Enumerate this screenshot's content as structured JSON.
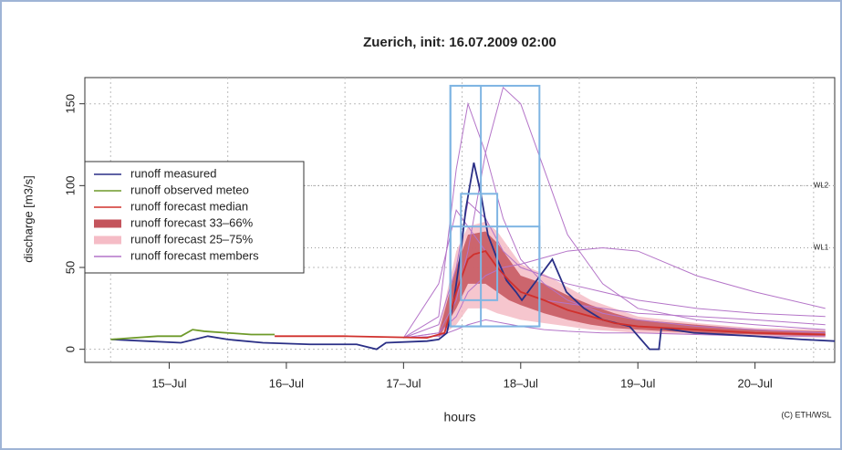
{
  "chart_data": {
    "type": "hydrograph",
    "title": "Zuerich, init: 16.07.2009 02:00",
    "xlabel": "hours",
    "ylabel": "discharge [m3/s]",
    "credit": "(C) ETH/WSL",
    "xlim": [
      14.28,
      20.68
    ],
    "ylim": [
      -8,
      166
    ],
    "xticks": [
      {
        "value": 15,
        "label": "15–Jul"
      },
      {
        "value": 16,
        "label": "16–Jul"
      },
      {
        "value": 17,
        "label": "17–Jul"
      },
      {
        "value": 18,
        "label": "18–Jul"
      },
      {
        "value": 19,
        "label": "19–Jul"
      },
      {
        "value": 20,
        "label": "20–Jul"
      }
    ],
    "yticks": [
      0,
      50,
      100,
      150
    ],
    "xgrid": [
      14.5,
      15.5,
      16.5,
      17.5,
      18.5,
      19.5,
      20.5
    ],
    "grid": true,
    "legend": "upper-left",
    "series": [
      {
        "name": "runoff measured",
        "color": "#2a2f86",
        "x": [
          14.51,
          14.8,
          15.1,
          15.33,
          15.5,
          15.8,
          16.2,
          16.6,
          16.77,
          16.85,
          17.2,
          17.3,
          17.37,
          17.43,
          17.49,
          17.53,
          17.6,
          17.66,
          17.72,
          17.8,
          17.88,
          17.96,
          18.01,
          18.27,
          18.39,
          18.54,
          18.7,
          18.93,
          19.1,
          19.18,
          19.2,
          19.48,
          20.0,
          20.4,
          20.68
        ],
        "values": [
          6,
          5,
          4,
          8,
          6,
          4,
          3,
          3,
          0,
          4,
          5,
          6,
          10,
          30,
          60,
          85,
          114,
          95,
          70,
          55,
          42,
          35,
          30,
          55,
          35,
          25,
          18,
          14,
          0,
          0,
          13,
          10,
          8,
          6,
          5
        ]
      },
      {
        "name": "runoff observed meteo",
        "color": "#6e9a2a",
        "x": [
          14.5,
          14.9,
          15.1,
          15.2,
          15.3,
          15.5,
          15.7,
          15.9
        ],
        "values": [
          6,
          8,
          8,
          12,
          11,
          10,
          9,
          9
        ]
      },
      {
        "name": "runoff forecast median",
        "color": "#d0302c",
        "x": [
          15.9,
          16.5,
          17.2,
          17.35,
          17.45,
          17.55,
          17.6,
          17.7,
          17.8,
          17.9,
          18.0,
          18.2,
          18.4,
          18.6,
          18.8,
          19.0,
          19.5,
          20.0,
          20.6
        ],
        "values": [
          8,
          8,
          7,
          10,
          35,
          55,
          58,
          60,
          50,
          42,
          35,
          30,
          24,
          20,
          16,
          14,
          12,
          10,
          9
        ]
      },
      {
        "name": "runoff forecast 33–66%",
        "color": "#c4545c",
        "x": [
          17.3,
          17.45,
          17.55,
          17.7,
          17.8,
          17.9,
          18.0,
          18.2,
          18.4,
          18.6,
          18.8,
          19.0,
          19.5,
          20.0,
          20.6
        ],
        "low": [
          7,
          25,
          40,
          40,
          35,
          30,
          27,
          22,
          18,
          15,
          13,
          12,
          10,
          9,
          8
        ],
        "high": [
          10,
          50,
          70,
          72,
          65,
          55,
          45,
          40,
          33,
          27,
          22,
          18,
          15,
          12,
          11
        ]
      },
      {
        "name": "runoff forecast 25–75%",
        "color": "#f5bcc6",
        "x": [
          17.3,
          17.45,
          17.55,
          17.7,
          17.8,
          17.9,
          18.0,
          18.2,
          18.4,
          18.6,
          18.8,
          19.0,
          19.5,
          20.0,
          20.6
        ],
        "low": [
          7,
          15,
          25,
          25,
          22,
          20,
          18,
          16,
          14,
          12,
          11,
          10,
          9,
          8,
          7
        ],
        "high": [
          12,
          60,
          75,
          78,
          72,
          62,
          52,
          46,
          38,
          30,
          25,
          20,
          16,
          13,
          12
        ]
      },
      {
        "name": "runoff forecast members",
        "color": "#b474c8",
        "x": [
          17.0,
          17.3,
          17.45,
          17.55,
          17.7,
          17.85,
          18.0,
          18.2,
          18.4,
          18.7,
          19.0,
          19.5,
          20.0,
          20.6
        ],
        "members": [
          [
            7,
            20,
            110,
            150,
            120,
            80,
            55,
            40,
            30,
            22,
            18,
            14,
            12,
            10
          ],
          [
            7,
            10,
            30,
            60,
            120,
            160,
            150,
            110,
            70,
            40,
            25,
            18,
            15,
            12
          ],
          [
            7,
            40,
            85,
            75,
            60,
            45,
            35,
            30,
            28,
            25,
            22,
            20,
            18,
            15
          ],
          [
            7,
            10,
            20,
            35,
            45,
            50,
            52,
            56,
            60,
            62,
            60,
            45,
            35,
            25
          ],
          [
            7,
            15,
            50,
            90,
            80,
            60,
            50,
            45,
            40,
            35,
            30,
            25,
            22,
            20
          ],
          [
            7,
            8,
            12,
            15,
            18,
            16,
            14,
            12,
            11,
            10,
            10,
            9,
            8,
            8
          ]
        ]
      }
    ],
    "boxes": {
      "color": "#7fb5e3",
      "items": [
        {
          "x": [
            17.4,
            18.16
          ],
          "y": [
            14,
            161
          ]
        },
        {
          "x": [
            17.4,
            17.66
          ],
          "y": [
            14,
            161
          ]
        },
        {
          "x": [
            17.49,
            17.8
          ],
          "y": [
            30,
            95
          ]
        },
        {
          "x": [
            17.4,
            18.16
          ],
          "y": [
            14,
            75
          ]
        }
      ]
    },
    "levels": [
      {
        "label": "WL2",
        "value": 100
      },
      {
        "label": "WL1",
        "value": 62
      }
    ]
  }
}
